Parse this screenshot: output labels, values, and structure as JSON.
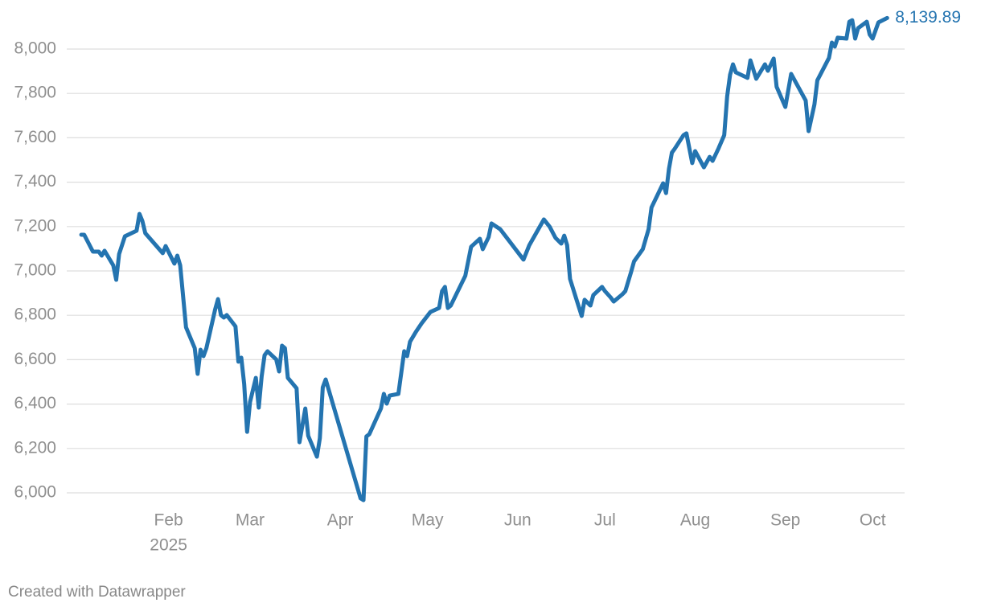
{
  "chart_data": {
    "type": "line",
    "color": "#2474b0",
    "grid": true,
    "x": [
      1,
      2,
      5,
      7,
      8,
      9,
      12,
      13,
      14,
      16,
      20,
      21,
      22,
      23,
      29,
      30,
      33,
      34,
      35,
      37,
      40,
      41,
      42,
      43,
      44,
      47,
      48,
      49,
      50,
      51,
      54,
      55,
      56,
      57,
      58,
      59,
      61,
      62,
      63,
      64,
      65,
      68,
      69,
      70,
      71,
      72,
      75,
      76,
      78,
      79,
      82,
      83,
      84,
      85,
      97,
      98,
      99,
      100,
      104,
      105,
      106,
      107,
      110,
      112,
      113,
      114,
      116,
      118,
      121,
      124,
      125,
      126,
      127,
      128,
      133,
      135,
      138,
      139,
      141,
      142,
      145,
      153,
      155,
      160,
      162,
      164,
      166,
      167,
      168,
      169,
      171,
      173,
      174,
      176,
      177,
      180,
      181,
      183,
      184,
      187,
      188,
      190,
      191,
      194,
      196,
      197,
      201,
      202,
      203,
      204,
      205,
      208,
      209,
      211,
      212,
      215,
      217,
      218,
      220,
      222,
      223,
      224,
      225,
      226,
      230,
      231,
      233,
      236,
      237,
      239,
      240,
      243,
      245,
      250,
      251,
      253,
      254,
      258,
      259,
      260,
      261,
      264,
      265,
      266,
      267,
      268,
      271,
      272,
      273,
      275,
      278
    ],
    "values": [
      7163,
      7163,
      7087,
      7087,
      7069,
      7091,
      7025,
      6960,
      7076,
      7156,
      7181,
      7257,
      7225,
      7170,
      7080,
      7112,
      7033,
      7069,
      7025,
      6746,
      6652,
      6536,
      6645,
      6616,
      6652,
      6826,
      6873,
      6801,
      6790,
      6801,
      6750,
      6591,
      6609,
      6489,
      6275,
      6409,
      6518,
      6384,
      6525,
      6620,
      6638,
      6601,
      6547,
      6663,
      6652,
      6518,
      6471,
      6228,
      6380,
      6257,
      6163,
      6246,
      6475,
      6511,
      5975,
      5967,
      6254,
      6264,
      6380,
      6446,
      6402,
      6438,
      6446,
      6638,
      6616,
      6681,
      6725,
      6764,
      6815,
      6833,
      6909,
      6928,
      6833,
      6844,
      6978,
      7109,
      7145,
      7098,
      7152,
      7214,
      7188,
      7051,
      7116,
      7232,
      7199,
      7149,
      7123,
      7159,
      7116,
      6964,
      6880,
      6797,
      6870,
      6844,
      6891,
      6928,
      6909,
      6880,
      6862,
      6895,
      6909,
      6996,
      7043,
      7098,
      7188,
      7286,
      7395,
      7351,
      7460,
      7533,
      7551,
      7612,
      7620,
      7486,
      7540,
      7467,
      7514,
      7496,
      7551,
      7612,
      7786,
      7884,
      7931,
      7895,
      7870,
      7949,
      7866,
      7931,
      7902,
      7957,
      7830,
      7739,
      7888,
      7768,
      7630,
      7750,
      7859,
      7960,
      8029,
      8011,
      8051,
      8047,
      8123,
      8130,
      8047,
      8094,
      8123,
      8065,
      8047,
      8120,
      8139.89
    ],
    "value_labels": [
      null,
      null,
      null,
      null,
      null,
      null,
      null,
      null,
      null,
      null,
      null,
      null,
      null,
      null,
      null,
      null,
      null,
      null,
      null,
      null,
      null,
      null,
      null,
      null,
      null,
      null,
      null,
      null,
      null,
      null,
      null,
      null,
      null,
      null,
      null,
      null,
      null,
      null,
      null,
      null,
      null,
      null,
      null,
      null,
      null,
      null,
      null,
      null,
      null,
      null,
      null,
      null,
      null,
      null,
      null,
      null,
      null,
      null,
      null,
      null,
      null,
      null,
      null,
      null,
      null,
      null,
      null,
      null,
      null,
      null,
      null,
      null,
      null,
      null,
      null,
      null,
      null,
      null,
      null,
      null,
      null,
      null,
      null,
      null,
      null,
      null,
      null,
      null,
      null,
      null,
      null,
      null,
      null,
      null,
      null,
      null,
      null,
      null,
      null,
      null,
      null,
      null,
      null,
      null,
      null,
      null,
      null,
      null,
      null,
      null,
      null,
      null,
      null,
      null,
      null,
      null,
      null,
      null,
      null,
      null,
      null,
      null,
      null,
      null,
      null,
      null,
      null,
      null,
      null,
      null,
      null,
      null,
      null,
      null,
      null,
      null,
      null,
      null,
      null,
      null,
      null,
      null,
      null,
      null,
      null,
      null,
      null,
      null,
      null,
      null,
      "8,139.89"
    ],
    "xlim": [
      -4,
      284
    ],
    "xticks": [
      {
        "value": 31,
        "label": "Feb"
      },
      {
        "value": 59,
        "label": "Mar"
      },
      {
        "value": 90,
        "label": "Apr"
      },
      {
        "value": 120,
        "label": "May"
      },
      {
        "value": 151,
        "label": "Jun"
      },
      {
        "value": 181,
        "label": "Jul"
      },
      {
        "value": 212,
        "label": "Aug"
      },
      {
        "value": 243,
        "label": "Sep"
      },
      {
        "value": 273,
        "label": "Oct"
      }
    ],
    "x_year_label": "2025",
    "ylim": [
      6000,
      8000
    ],
    "yticks": [
      {
        "value": 6000,
        "label": "6,000"
      },
      {
        "value": 6200,
        "label": "6,200"
      },
      {
        "value": 6400,
        "label": "6,400"
      },
      {
        "value": 6600,
        "label": "6,600"
      },
      {
        "value": 6800,
        "label": "6,800"
      },
      {
        "value": 7000,
        "label": "7,000"
      },
      {
        "value": 7200,
        "label": "7,200"
      },
      {
        "value": 7400,
        "label": "7,400"
      },
      {
        "value": 7600,
        "label": "7,600"
      },
      {
        "value": 7800,
        "label": "7,800"
      },
      {
        "value": 8000,
        "label": "8,000"
      }
    ],
    "credit": "Created with Datawrapper"
  }
}
